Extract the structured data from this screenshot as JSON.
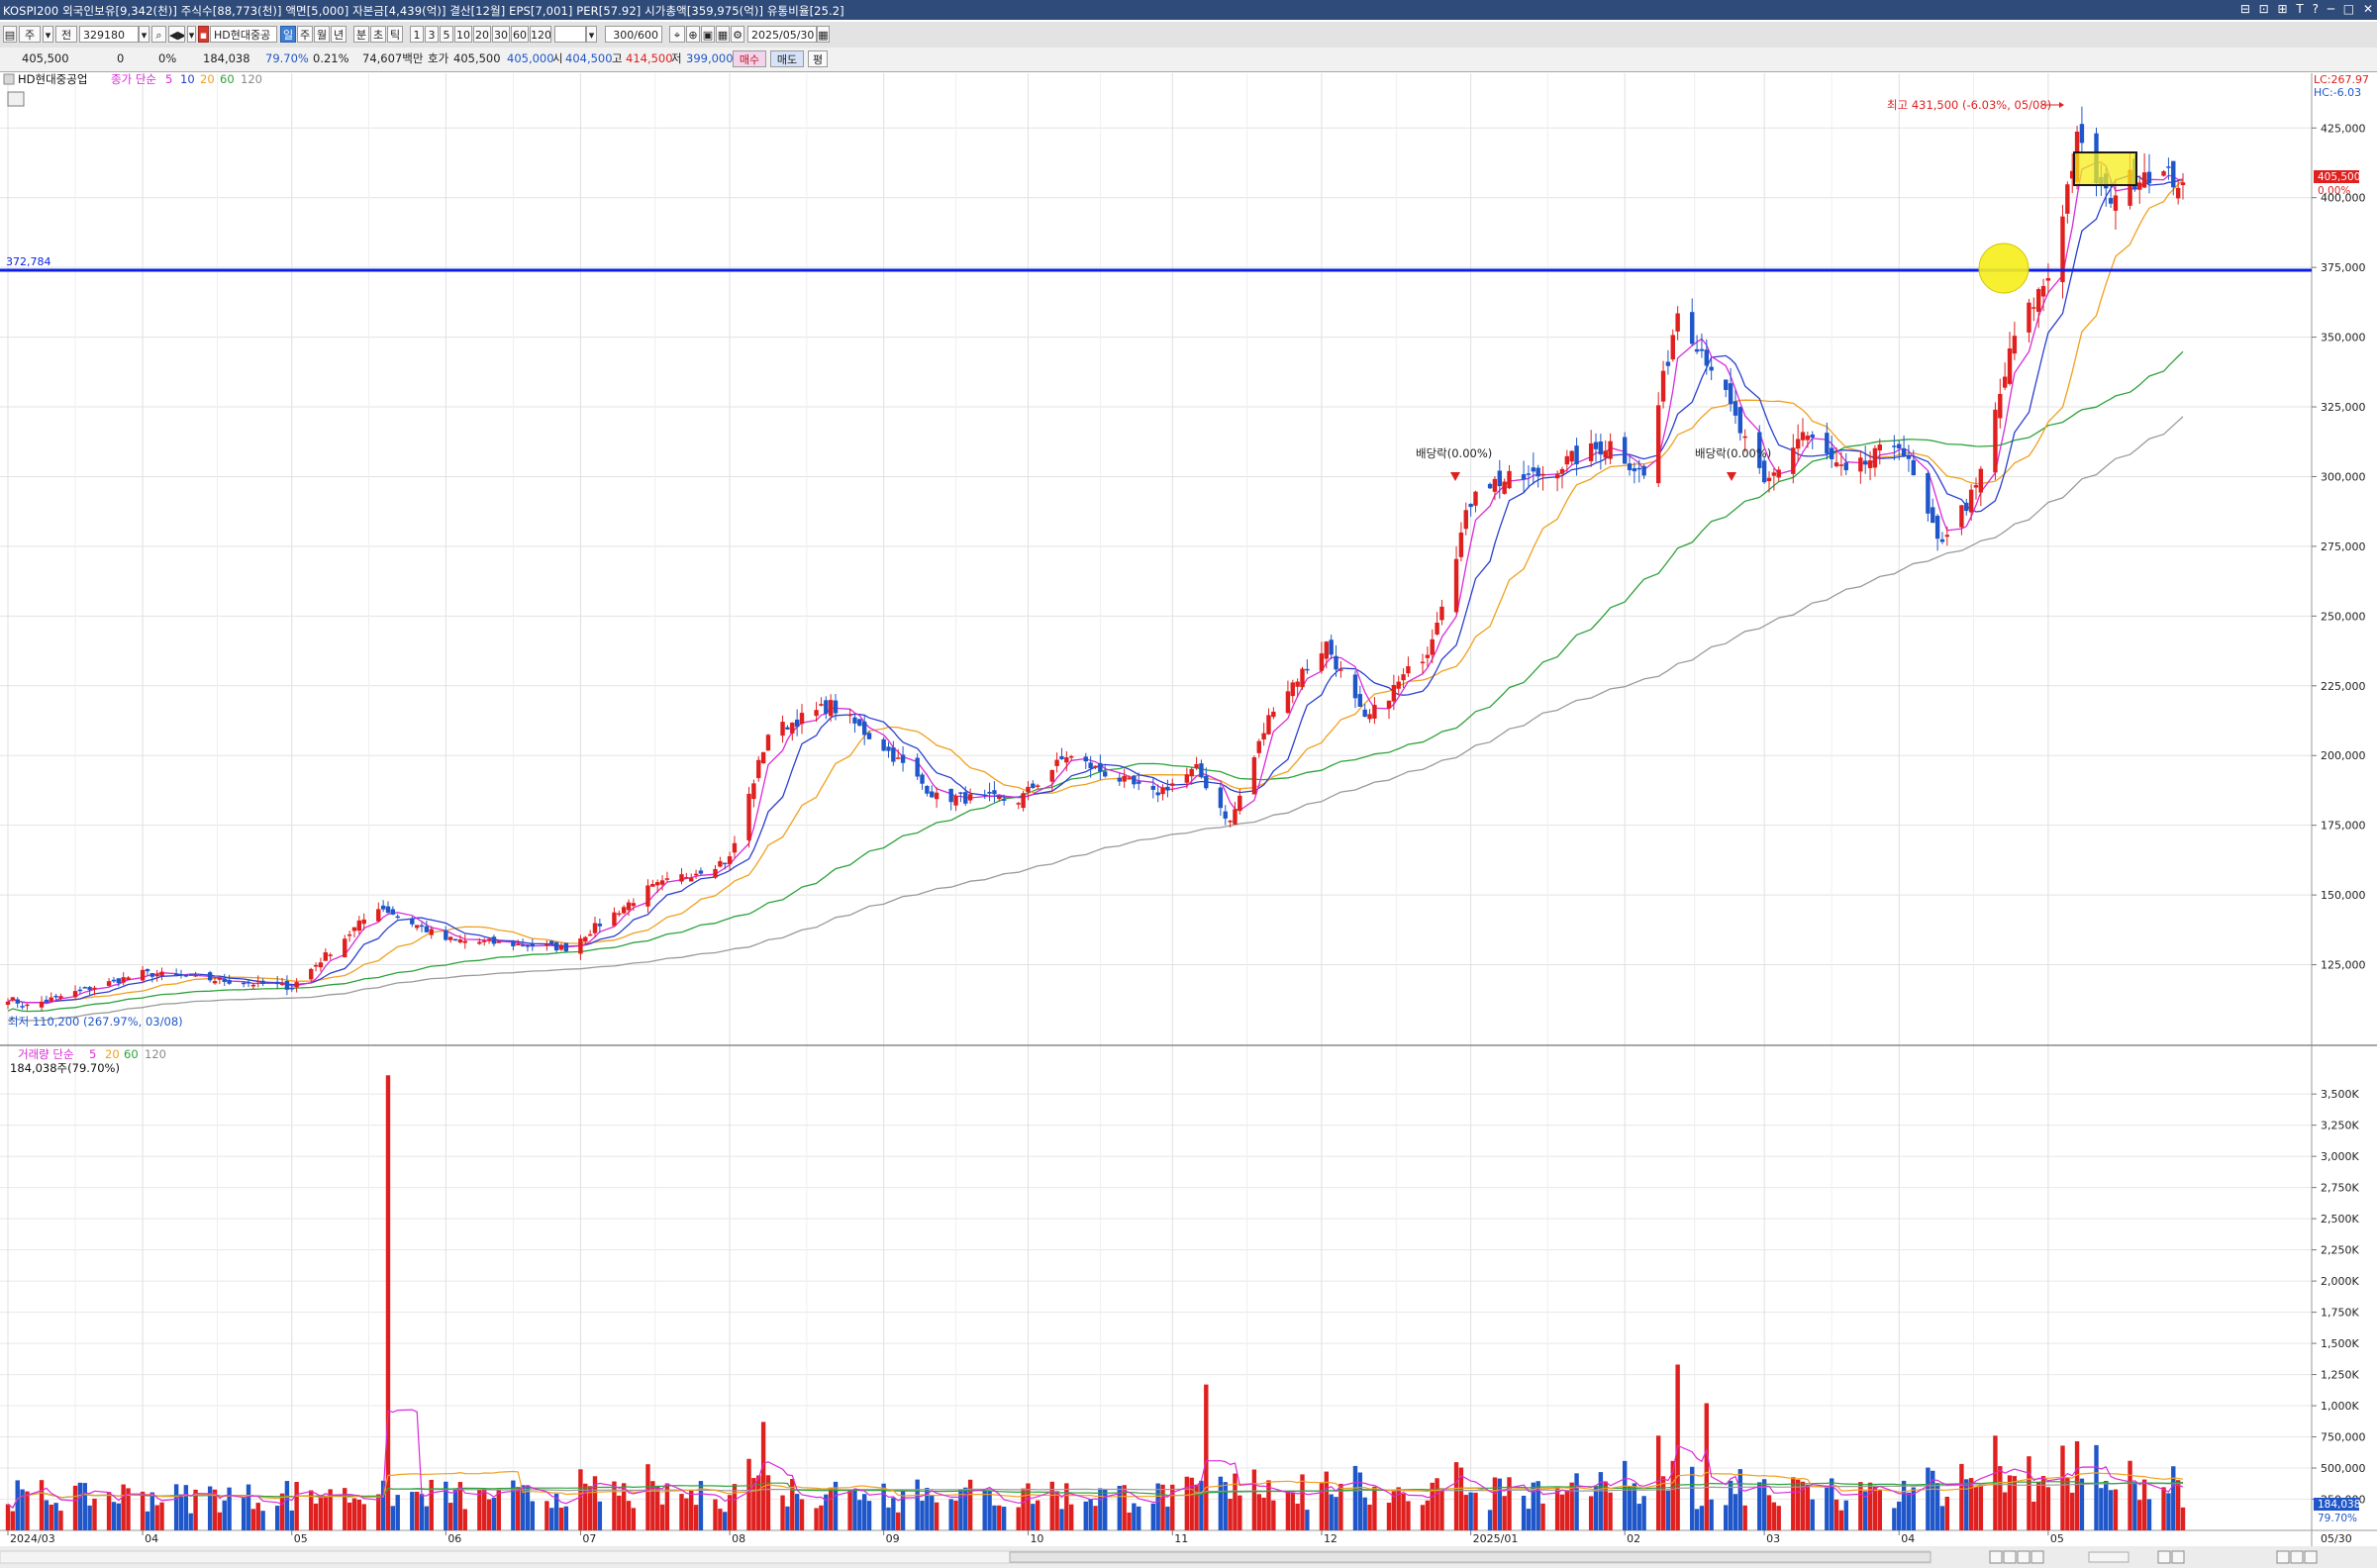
{
  "window": {
    "title": "KOSPI200 외국인보유[9,342(천)] 주식수[88,773(천)] 액면[5,000] 자본금[4,439(억)] 결산[12월] EPS[7,001] PER[57.92] 시가총액[359,975(억)] 유통비율[25.2]",
    "controls": "⊟ ⊡ ⊞ T ? ─ □ ✕"
  },
  "toolbar": {
    "period_labels": [
      "주",
      "전"
    ],
    "stock_code": "329180",
    "stock_name": "HD현대중공",
    "interval_tabs": [
      "일",
      "주",
      "월",
      "년",
      "분",
      "초",
      "틱"
    ],
    "interval_numbers": [
      "1",
      "3",
      "5",
      "10",
      "20",
      "30",
      "60",
      "120"
    ],
    "count_value": "300/600",
    "date_value": "2025/05/30"
  },
  "quote": {
    "price": "405,500",
    "change": "0",
    "change_pct": "0%",
    "volume": "184,038",
    "volume_ratio": "79.70%",
    "turnover": "0.21%",
    "amount": "74,607백만",
    "ask_label": "호가",
    "ask": "405,500",
    "bid": "405,000",
    "open_label": "시",
    "open": "404,500",
    "high_label": "고",
    "high": "414,500",
    "low_label": "저",
    "low": "399,000",
    "buy_label": "매수",
    "sell_label": "매도",
    "extra_label": "평"
  },
  "price_pane": {
    "stock_label": "HD현대중공업",
    "legend_prefix": "종가 단순",
    "legend_periods": [
      "5",
      "10",
      "20",
      "60",
      "120"
    ],
    "y_ticks": [
      "425,000",
      "400,000",
      "375,000",
      "350,000",
      "325,000",
      "300,000",
      "275,000",
      "250,000",
      "225,000",
      "200,000",
      "175,000",
      "150,000",
      "125,000"
    ],
    "lc_label": "LC:267.97",
    "hc_label": "HC:-6.03",
    "hline_value": "372,784",
    "high_annotation": "최고 431,500 (-6.03%, 05/08)",
    "low_annotation": "최저 110,200 (267.97%, 03/08)",
    "dividend_label": "배당락(0.00%)",
    "dividend_label2": "배당락(0.00%)",
    "last_price_tag": "405,500",
    "last_pct_tag": "0.00%"
  },
  "volume_pane": {
    "legend_prefix": "거래량 단순",
    "legend_periods": [
      "5",
      "20",
      "60",
      "120"
    ],
    "info": "184,038주(79.70%)",
    "y_ticks": [
      "3,500K",
      "3,250K",
      "3,000K",
      "2,750K",
      "2,500K",
      "2,250K",
      "2,000K",
      "1,750K",
      "1,500K",
      "1,250K",
      "1,000K",
      "750,000",
      "500,000",
      "250,000"
    ],
    "last_tag": "184,038",
    "last_pct_tag": "79.70%"
  },
  "x_axis": {
    "labels": [
      "2024/03",
      "04",
      "05",
      "06",
      "07",
      "08",
      "09",
      "10",
      "11",
      "12",
      "2025/01",
      "02",
      "03",
      "04",
      "05"
    ],
    "end_label": "05/30"
  },
  "colors": {
    "up": "#e01f1f",
    "down": "#1f56c9",
    "ma5": "#d92ad9",
    "ma10": "#2a3fd1",
    "ma20": "#f0a01e",
    "ma60": "#2ca23a",
    "ma120": "#9a9a9a",
    "hline": "#0a1ee6"
  },
  "chart_data": {
    "type": "candlestick",
    "title": "HD현대중공업",
    "y_range": [
      100000,
      440000
    ],
    "volume_range_k": [
      0,
      3700
    ],
    "anchors": [
      {
        "date": "2024/03/04",
        "close": 113000
      },
      {
        "date": "2024/03/08",
        "close": 110200
      },
      {
        "date": "2024/04/01",
        "close": 122000
      },
      {
        "date": "2024/05/02",
        "close": 117000
      },
      {
        "date": "2024/05/20",
        "close": 146000
      },
      {
        "date": "2024/06/03",
        "close": 134000
      },
      {
        "date": "2024/06/28",
        "close": 131000
      },
      {
        "date": "2024/07/15",
        "close": 152000
      },
      {
        "date": "2024/08/01",
        "close": 163000
      },
      {
        "date": "2024/08/09",
        "close": 208000
      },
      {
        "date": "2024/08/22",
        "close": 218000
      },
      {
        "date": "2024/09/02",
        "close": 203000
      },
      {
        "date": "2024/09/13",
        "close": 185000
      },
      {
        "date": "2024/09/30",
        "close": 184000
      },
      {
        "date": "2024/10/10",
        "close": 200000
      },
      {
        "date": "2024/10/28",
        "close": 186000
      },
      {
        "date": "2024/11/06",
        "close": 195000
      },
      {
        "date": "2024/11/13",
        "close": 176000
      },
      {
        "date": "2024/11/22",
        "close": 218000
      },
      {
        "date": "2024/12/03",
        "close": 240000
      },
      {
        "date": "2024/12/11",
        "close": 212000
      },
      {
        "date": "2024/12/24",
        "close": 238000
      },
      {
        "date": "2025/01/03",
        "close": 297000
      },
      {
        "date": "2025/01/15",
        "close": 300000
      },
      {
        "date": "2025/01/31",
        "close": 312000
      },
      {
        "date": "2025/02/07",
        "close": 300000
      },
      {
        "date": "2025/02/14",
        "close": 360000
      },
      {
        "date": "2025/02/21",
        "close": 340000
      },
      {
        "date": "2025/03/04",
        "close": 296000
      },
      {
        "date": "2025/03/12",
        "close": 316000
      },
      {
        "date": "2025/03/21",
        "close": 300000
      },
      {
        "date": "2025/04/01",
        "close": 313000
      },
      {
        "date": "2025/04/09",
        "close": 276000
      },
      {
        "date": "2025/04/17",
        "close": 295000
      },
      {
        "date": "2025/04/25",
        "close": 350000
      },
      {
        "date": "2025/05/02",
        "close": 372000
      },
      {
        "date": "2025/05/08",
        "close": 420000
      },
      {
        "date": "2025/05/14",
        "close": 400000
      },
      {
        "date": "2025/05/22",
        "close": 410000
      },
      {
        "date": "2025/05/30",
        "close": 405500
      }
    ],
    "volume_spikes_k": [
      {
        "date": "2024/05/22",
        "volume": 3650
      },
      {
        "date": "2024/08/08",
        "volume": 870
      },
      {
        "date": "2024/11/08",
        "volume": 1170
      },
      {
        "date": "2025/02/14",
        "volume": 1330
      },
      {
        "date": "2025/02/20",
        "volume": 1020
      }
    ]
  }
}
